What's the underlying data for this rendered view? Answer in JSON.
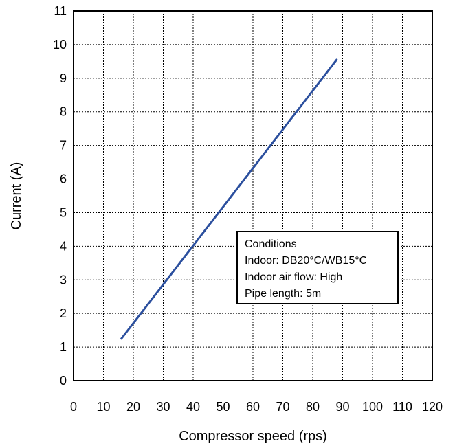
{
  "chart_data": {
    "type": "line",
    "xlabel": "Compressor speed (rps)",
    "ylabel": "Current (A)",
    "xlim": [
      0,
      120
    ],
    "ylim": [
      0,
      11
    ],
    "xticks": [
      "0",
      "10",
      "20",
      "30",
      "40",
      "50",
      "60",
      "70",
      "80",
      "90",
      "100",
      "110",
      "120"
    ],
    "yticks": [
      "0",
      "1",
      "2",
      "3",
      "4",
      "5",
      "6",
      "7",
      "8",
      "9",
      "10",
      "11"
    ],
    "grid": true,
    "series": [
      {
        "color": "#2b4f9e",
        "x": [
          16,
          88
        ],
        "y": [
          1.25,
          9.55
        ]
      }
    ],
    "annotation": {
      "lines": [
        "Conditions",
        "Indoor: DB20°C/WB15°C",
        "Indoor air flow: High",
        "Pipe length: 5m"
      ]
    }
  }
}
